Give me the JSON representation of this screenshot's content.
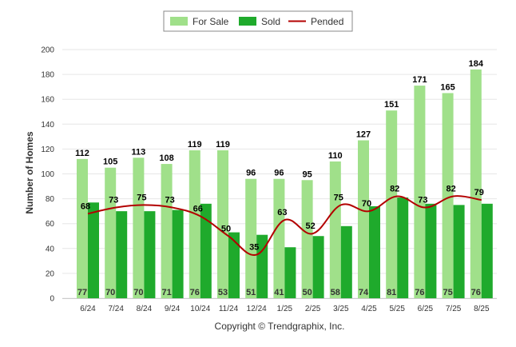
{
  "chart_data": {
    "type": "bar",
    "categories": [
      "6/24",
      "7/24",
      "8/24",
      "9/24",
      "10/24",
      "11/24",
      "12/24",
      "1/25",
      "2/25",
      "3/25",
      "4/25",
      "5/25",
      "6/25",
      "7/25",
      "8/25"
    ],
    "series": [
      {
        "name": "For Sale",
        "kind": "bar",
        "color": "#a0e08a",
        "values": [
          112,
          105,
          113,
          108,
          119,
          119,
          96,
          96,
          95,
          110,
          127,
          151,
          171,
          165,
          184
        ]
      },
      {
        "name": "Sold",
        "kind": "bar",
        "color": "#1faa2c",
        "values": [
          77,
          70,
          70,
          71,
          76,
          53,
          51,
          41,
          50,
          58,
          74,
          81,
          76,
          75,
          76
        ]
      },
      {
        "name": "Pended",
        "kind": "line",
        "color": "#b30000",
        "values": [
          68,
          73,
          75,
          73,
          66,
          50,
          35,
          63,
          52,
          75,
          70,
          82,
          73,
          82,
          79
        ]
      }
    ],
    "ylabel": "Number of Homes",
    "xlabel": "",
    "ylim": [
      0,
      200
    ],
    "yticks": [
      0,
      20,
      40,
      60,
      80,
      100,
      120,
      140,
      160,
      180,
      200
    ],
    "grid": true,
    "legend_position": "top-center"
  },
  "footer": {
    "copyright": "Copyright © Trendgraphix, Inc."
  }
}
